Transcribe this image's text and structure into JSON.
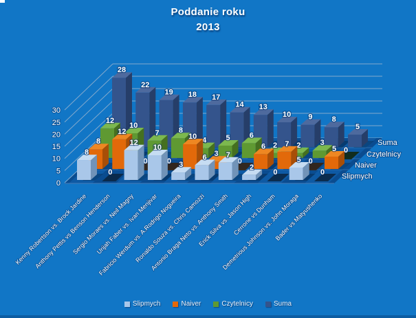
{
  "title": {
    "line1": "Poddanie roku",
    "line2": "2013"
  },
  "colors": {
    "background": "#1176C6",
    "text": "#FFFFFF",
    "gridline": "#A9BACF",
    "floor_light": "#0E5CA6",
    "floor_dark": "#0A4C90",
    "floor_edge": "#3D79B8"
  },
  "y_axis": {
    "ticks": [
      0,
      5,
      10,
      15,
      20,
      25,
      30
    ]
  },
  "series_axis_labels": [
    "Suma",
    "Czytelnicy",
    "Naiver",
    "Slipmych"
  ],
  "legend": {
    "items": [
      {
        "label": "Slipmych",
        "color": "#A9C7E9"
      },
      {
        "label": "Naiver",
        "color": "#E2690A"
      },
      {
        "label": "Czytelnicy",
        "color": "#5F9932"
      },
      {
        "label": "Suma",
        "color": "#34548C"
      }
    ]
  },
  "chart_data": {
    "type": "bar",
    "variant": "3d-column",
    "title": "Poddanie roku 2013",
    "categories": [
      "Kenny Robertson vs. Brock Jardine",
      "Anthony Pettis vs Benson Henderson",
      "Sergio Moraes vs. Neil Magny",
      "Urijah Faber vs. Ivan Menjivar",
      "Fabricio Werdum vs. A.Rodrigo Nogueira",
      "Ronaldo Souza vs. Chris Camozzi",
      "Antonio Braga Neto vs. Anthony Smith",
      "Erick Silva vs. Jason High",
      "Cerrone vs Dunham",
      "Demetrious Johnson vs. John Moraga",
      "Bader vs Matyushenko"
    ],
    "series": [
      {
        "name": "Slipmych",
        "values": [
          8,
          0,
          12,
          10,
          3,
          6,
          7,
          2,
          0,
          5,
          0
        ],
        "front": "#A9C7E9",
        "side": "#7193B8",
        "top": "#C6DCF2",
        "shadow": "#0A2440"
      },
      {
        "name": "Naiver",
        "values": [
          8,
          12,
          0,
          0,
          10,
          3,
          0,
          6,
          7,
          0,
          5
        ],
        "front": "#E2690A",
        "side": "#A84E07",
        "top": "#EE8722",
        "shadow": "#38200A"
      },
      {
        "name": "Czytelnicy",
        "values": [
          12,
          10,
          7,
          8,
          4,
          5,
          6,
          2,
          2,
          3,
          0
        ],
        "front": "#5F9932",
        "side": "#45701F",
        "top": "#7CB84E",
        "shadow": "#122608"
      },
      {
        "name": "Suma",
        "values": [
          28,
          22,
          19,
          18,
          17,
          14,
          13,
          10,
          9,
          8,
          5
        ],
        "front": "#34548C",
        "side": "#263E69",
        "top": "#4E6A9E",
        "shadow": "#0A1830"
      }
    ],
    "ylim": [
      0,
      30
    ],
    "grid": true,
    "legend_position": "bottom",
    "data_labels": true
  }
}
